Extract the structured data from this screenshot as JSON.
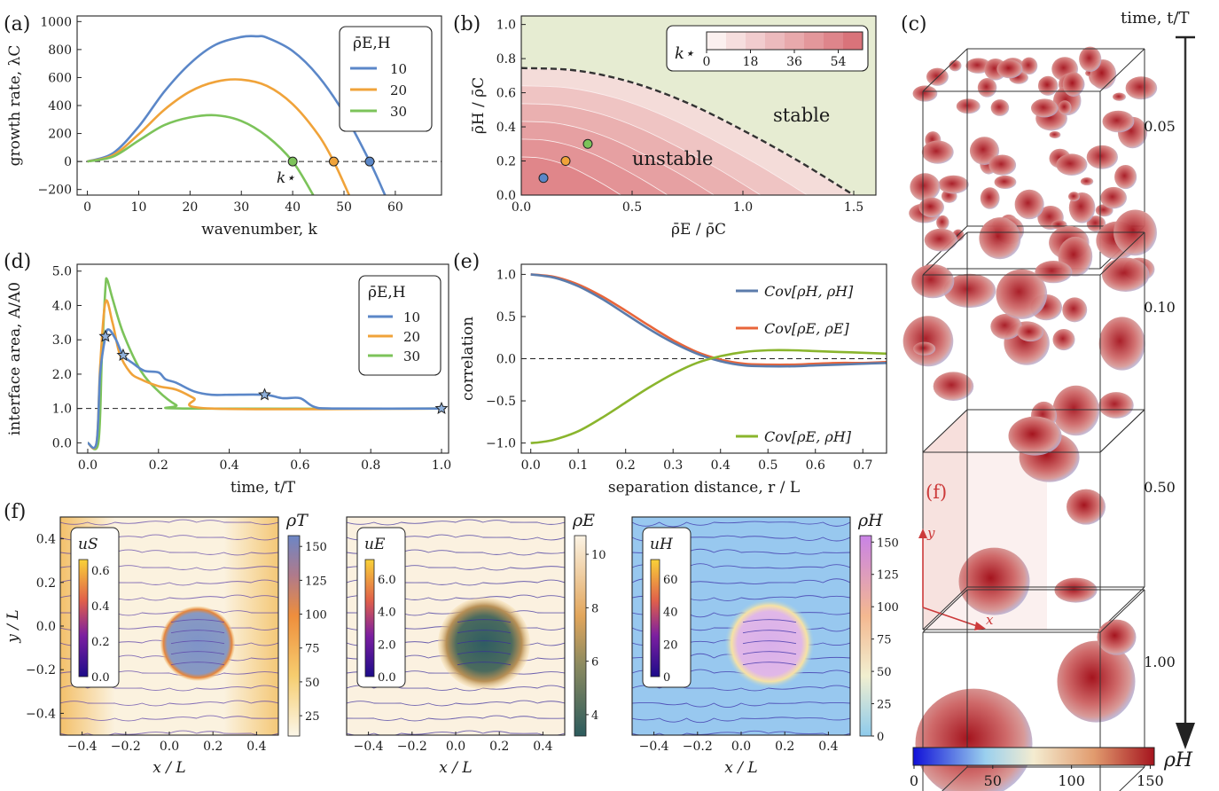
{
  "colors": {
    "blue": "#5b87c8",
    "orange": "#f0a33a",
    "green": "#7cc35a",
    "corr_blue": "#5b7bab",
    "corr_red": "#e8653a",
    "corr_green": "#8ab52d",
    "stable_bg": "#e6ecd2",
    "unstable_bg": "#e3898e"
  },
  "panel_a": {
    "label": "(a)",
    "legend_title": "ρ̄E,H",
    "k_star_label": "k⋆",
    "chart_data": {
      "type": "line",
      "xlabel": "wavenumber, k",
      "ylabel": "growth rate,  λC",
      "xlim": [
        -2,
        69
      ],
      "ylim": [
        -240,
        1040
      ],
      "xticks": [
        "0",
        "10",
        "20",
        "30",
        "40",
        "50",
        "60"
      ],
      "yticks": [
        "−200",
        "0",
        "200",
        "400",
        "600",
        "800",
        "1000"
      ],
      "series": [
        {
          "name": "10",
          "k": [
            0,
            5,
            10,
            15,
            20,
            25,
            30,
            33,
            35,
            40,
            45,
            50,
            55,
            58
          ],
          "y": [
            0,
            60,
            250,
            500,
            700,
            835,
            890,
            895,
            885,
            790,
            610,
            345,
            0,
            -240
          ]
        },
        {
          "name": "20",
          "k": [
            0,
            5,
            10,
            15,
            20,
            25,
            30,
            35,
            40,
            45,
            48,
            51
          ],
          "y": [
            0,
            45,
            195,
            370,
            500,
            570,
            585,
            540,
            410,
            190,
            0,
            -240
          ]
        },
        {
          "name": "30",
          "k": [
            0,
            5,
            10,
            15,
            20,
            25,
            30,
            35,
            40,
            44
          ],
          "y": [
            0,
            35,
            150,
            260,
            315,
            330,
            290,
            180,
            0,
            -240
          ]
        }
      ],
      "stars_k": [
        55,
        48,
        40
      ]
    }
  },
  "panel_b": {
    "label": "(b)",
    "stable_label": "stable",
    "unstable_label": "unstable",
    "cbar_label": "k⋆",
    "cbar_ticks": [
      "0",
      "18",
      "36",
      "54"
    ],
    "chart_data": {
      "type": "area",
      "xlabel": "ρ̄E / ρ̄C",
      "ylabel": "ρ̄H / ρ̄C",
      "xlim": [
        0,
        1.6
      ],
      "ylim": [
        0,
        1.05
      ],
      "xticks": [
        "0.0",
        "0.5",
        "1.0",
        "1.5"
      ],
      "yticks": [
        "0.0",
        "0.2",
        "0.4",
        "0.6",
        "0.8",
        "1.0"
      ],
      "boundary": {
        "x": [
          0,
          0.25,
          0.5,
          0.75,
          1.0,
          1.25,
          1.5
        ],
        "y": [
          0.745,
          0.73,
          0.66,
          0.54,
          0.38,
          0.2,
          0.0
        ]
      },
      "points": [
        {
          "x": 0.1,
          "y": 0.1,
          "series": "10"
        },
        {
          "x": 0.2,
          "y": 0.2,
          "series": "20"
        },
        {
          "x": 0.3,
          "y": 0.3,
          "series": "30"
        }
      ]
    }
  },
  "panel_c": {
    "label": "(c)",
    "time_label": "time, t/T",
    "times": [
      "0.05",
      "0.10",
      "0.50",
      "1.00"
    ],
    "cbar_label": "ρH",
    "cbar_ticks": [
      "0",
      "50",
      "100",
      "150"
    ],
    "f_label": "(f)",
    "x_axis": "x",
    "y_axis": "y"
  },
  "panel_d": {
    "label": "(d)",
    "legend_title": "ρ̄E,H",
    "chart_data": {
      "type": "line",
      "xlabel": "time, t/T",
      "ylabel": "interface area, A/A0",
      "xlim": [
        -0.03,
        1.02
      ],
      "ylim": [
        -0.3,
        5.2
      ],
      "xticks": [
        "0.0",
        "0.2",
        "0.4",
        "0.6",
        "0.8",
        "1.0"
      ],
      "yticks": [
        "0.0",
        "1.0",
        "2.0",
        "3.0",
        "4.0",
        "5.0"
      ],
      "series": [
        {
          "name": "10",
          "t": [
            0,
            0.025,
            0.035,
            0.05,
            0.06,
            0.08,
            0.1,
            0.13,
            0.16,
            0.2,
            0.22,
            0.25,
            0.3,
            0.35,
            0.4,
            0.5,
            0.55,
            0.6,
            0.64,
            0.7,
            1.0
          ],
          "y": [
            0,
            0,
            2.0,
            3.1,
            3.3,
            3.0,
            2.55,
            2.3,
            2.1,
            2.05,
            1.85,
            1.75,
            1.5,
            1.4,
            1.4,
            1.4,
            1.3,
            1.3,
            1.05,
            1.0,
            1.0
          ]
        },
        {
          "name": "20",
          "t": [
            0,
            0.025,
            0.035,
            0.05,
            0.07,
            0.09,
            0.12,
            0.15,
            0.2,
            0.25,
            0.3,
            0.35,
            1.0
          ],
          "y": [
            0,
            0,
            2.2,
            4.1,
            3.5,
            2.6,
            2.05,
            1.85,
            1.65,
            1.55,
            1.3,
            1.0,
            1.0
          ]
        },
        {
          "name": "30",
          "t": [
            0,
            0.03,
            0.04,
            0.05,
            0.055,
            0.07,
            0.1,
            0.15,
            0.2,
            0.25,
            0.28,
            1.0
          ],
          "y": [
            0,
            0,
            2.5,
            4.5,
            4.75,
            4.2,
            3.2,
            2.1,
            1.5,
            1.1,
            1.0,
            1.0
          ]
        }
      ],
      "stars": [
        {
          "t": 0.05,
          "y": 3.1
        },
        {
          "t": 0.1,
          "y": 2.55
        },
        {
          "t": 0.5,
          "y": 1.4
        },
        {
          "t": 1.0,
          "y": 1.0
        }
      ]
    }
  },
  "panel_e": {
    "label": "(e)",
    "chart_data": {
      "type": "line",
      "xlabel": "separation distance, r / L",
      "ylabel": "correlation",
      "xlim": [
        -0.02,
        0.75
      ],
      "ylim": [
        -1.12,
        1.12
      ],
      "xticks": [
        "0.0",
        "0.1",
        "0.2",
        "0.3",
        "0.4",
        "0.5",
        "0.6",
        "0.7"
      ],
      "yticks": [
        "−1.0",
        "−0.5",
        "0.0",
        "0.5",
        "1.0"
      ],
      "series": [
        {
          "name": "Cov[ρH, ρH]",
          "x": [
            0,
            0.05,
            0.1,
            0.15,
            0.2,
            0.25,
            0.3,
            0.35,
            0.4,
            0.45,
            0.5,
            0.55,
            0.6,
            0.65,
            0.7,
            0.75
          ],
          "y": [
            1.0,
            0.96,
            0.86,
            0.71,
            0.53,
            0.35,
            0.19,
            0.06,
            -0.03,
            -0.08,
            -0.09,
            -0.09,
            -0.08,
            -0.07,
            -0.06,
            -0.05
          ]
        },
        {
          "name": "Cov[ρE, ρE]",
          "x": [
            0,
            0.05,
            0.1,
            0.15,
            0.2,
            0.25,
            0.3,
            0.35,
            0.4,
            0.45,
            0.5,
            0.55,
            0.6,
            0.65,
            0.7,
            0.75
          ],
          "y": [
            1.0,
            0.97,
            0.88,
            0.74,
            0.57,
            0.39,
            0.22,
            0.08,
            -0.01,
            -0.06,
            -0.07,
            -0.07,
            -0.06,
            -0.05,
            -0.05,
            -0.04
          ]
        },
        {
          "name": "Cov[ρE, ρH]",
          "x": [
            0,
            0.02,
            0.05,
            0.1,
            0.15,
            0.2,
            0.25,
            0.3,
            0.35,
            0.4,
            0.45,
            0.5,
            0.55,
            0.6,
            0.65,
            0.7,
            0.75
          ],
          "y": [
            -1.0,
            -0.99,
            -0.96,
            -0.86,
            -0.7,
            -0.52,
            -0.34,
            -0.18,
            -0.05,
            0.03,
            0.08,
            0.1,
            0.1,
            0.09,
            0.08,
            0.07,
            0.06
          ]
        }
      ]
    }
  },
  "panel_f": {
    "label": "(f)",
    "xlabel": "x / L",
    "ylabel": "y / L",
    "xticks": [
      "−0.4",
      "−0.2",
      "0.0",
      "0.2",
      "0.4"
    ],
    "yticks": [
      "0.4",
      "0.2",
      "0.0",
      "−0.2",
      "−0.4"
    ],
    "maps": [
      {
        "speed_label": "uS",
        "speed_ticks": [
          "0.0",
          "0.2",
          "0.4",
          "0.6"
        ],
        "field_label": "ρT",
        "field_ticks": [
          "25",
          "50",
          "75",
          "100",
          "125",
          "150"
        ]
      },
      {
        "speed_label": "uE",
        "speed_ticks": [
          "0.0",
          "2.0",
          "4.0",
          "6.0"
        ],
        "field_label": "ρE",
        "field_ticks": [
          "4",
          "6",
          "8",
          "10"
        ]
      },
      {
        "speed_label": "uH",
        "speed_ticks": [
          "0",
          "20",
          "40",
          "60"
        ],
        "field_label": "ρH",
        "field_ticks": [
          "0",
          "25",
          "50",
          "75",
          "100",
          "125",
          "150"
        ]
      }
    ]
  }
}
